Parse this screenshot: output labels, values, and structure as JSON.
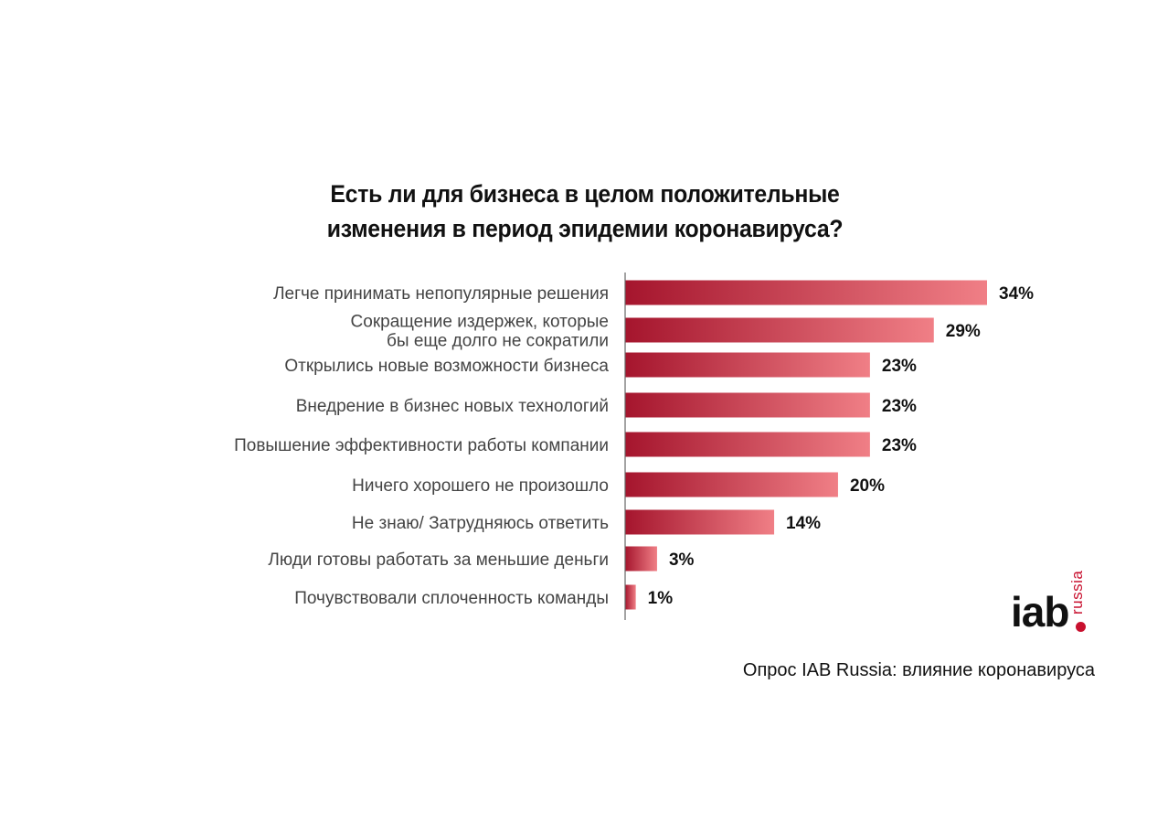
{
  "title_lines": [
    "Есть ли для бизнеса в целом положительные",
    "изменения в период эпидемии коронавируса?"
  ],
  "chart_data": {
    "type": "bar",
    "orientation": "horizontal",
    "title": "Есть ли для бизнеса в целом положительные изменения в период эпидемии коронавируса?",
    "categories": [
      [
        "Легче принимать непопулярные решения"
      ],
      [
        "Сокращение издержек,  которые",
        "бы еще долго не сократили"
      ],
      [
        "Открылись новые возможности бизнеса"
      ],
      [
        "Внедрение в бизнес новых технологий"
      ],
      [
        "Повышение эффективности работы компании"
      ],
      [
        "Ничего хорошего не произошло"
      ],
      [
        "Не знаю/ Затрудняюсь ответить"
      ],
      [
        "Люди готовы работать за меньшие деньги"
      ],
      [
        "Почувствовали сплоченность команды"
      ]
    ],
    "values": [
      34,
      29,
      23,
      23,
      23,
      20,
      14,
      3,
      1
    ],
    "value_labels": [
      "34%",
      "29%",
      "23%",
      "23%",
      "23%",
      "20%",
      "14%",
      "3%",
      "1%"
    ],
    "unit": "%",
    "xlim": [
      0,
      34
    ],
    "grid": false,
    "colors": {
      "bar_start": "#a5152d",
      "bar_end": "#f07f86",
      "axis": "#666666"
    }
  },
  "logo": {
    "main": "iab",
    "sub": "russia",
    "accent": "#c8102e"
  },
  "source_note": "Опрос IAB Russia: влияние коронавируса"
}
